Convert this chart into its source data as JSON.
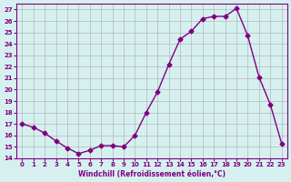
{
  "x": [
    0,
    1,
    2,
    3,
    4,
    5,
    6,
    7,
    8,
    9,
    10,
    11,
    12,
    13,
    14,
    15,
    16,
    17,
    18,
    19,
    20,
    21,
    22,
    23
  ],
  "y": [
    17.0,
    16.7,
    16.2,
    15.5,
    14.9,
    14.4,
    14.7,
    15.1,
    15.1,
    15.0,
    16.0,
    18.0,
    19.8,
    22.2,
    24.4,
    25.1,
    26.2,
    26.4,
    26.4,
    27.1,
    24.7,
    21.1,
    18.7,
    15.3
  ],
  "xlim": [
    -0.5,
    23.5
  ],
  "ylim": [
    14,
    27.5
  ],
  "yticks": [
    14,
    15,
    16,
    17,
    18,
    19,
    20,
    21,
    22,
    23,
    24,
    25,
    26,
    27
  ],
  "xticks": [
    0,
    1,
    2,
    3,
    4,
    5,
    6,
    7,
    8,
    9,
    10,
    11,
    12,
    13,
    14,
    15,
    16,
    17,
    18,
    19,
    20,
    21,
    22,
    23
  ],
  "xlabel": "Windchill (Refroidissement éolien,°C)",
  "line_color": "#800080",
  "marker_color": "#800080",
  "bg_color": "#d6f0f0",
  "grid_color": "#aaaaaa",
  "axis_label_color": "#800080",
  "tick_label_color": "#800080"
}
